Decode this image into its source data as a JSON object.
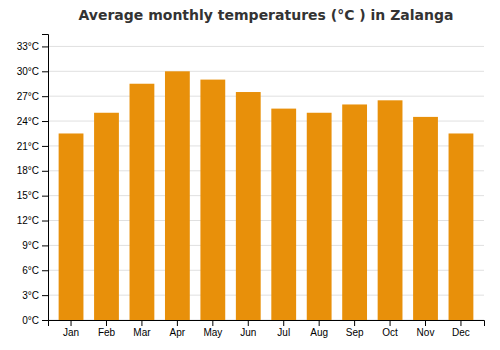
{
  "chart_data": {
    "type": "bar",
    "title": "Average monthly temperatures (°C ) in Zalanga",
    "categories": [
      "Jan",
      "Feb",
      "Mar",
      "Apr",
      "May",
      "Jun",
      "Jul",
      "Aug",
      "Sep",
      "Oct",
      "Nov",
      "Dec"
    ],
    "values": [
      22.5,
      25.0,
      28.5,
      30.0,
      29.0,
      27.5,
      25.5,
      25.0,
      26.0,
      26.5,
      24.5,
      22.5
    ],
    "color": "#E8900A",
    "ylim": [
      0,
      34.5
    ],
    "yticks": [
      {
        "value": 0,
        "label": "0°C"
      },
      {
        "value": 3,
        "label": "3°C"
      },
      {
        "value": 6,
        "label": "6°C"
      },
      {
        "value": 9,
        "label": "9°C"
      },
      {
        "value": 12,
        "label": "12°C"
      },
      {
        "value": 15,
        "label": "15°C"
      },
      {
        "value": 18,
        "label": "18°C"
      },
      {
        "value": 21,
        "label": "21°C"
      },
      {
        "value": 24,
        "label": "24°C"
      },
      {
        "value": 27,
        "label": "27°C"
      },
      {
        "value": 30,
        "label": "30°C"
      },
      {
        "value": 33,
        "label": "33°C"
      }
    ],
    "grid": true
  }
}
